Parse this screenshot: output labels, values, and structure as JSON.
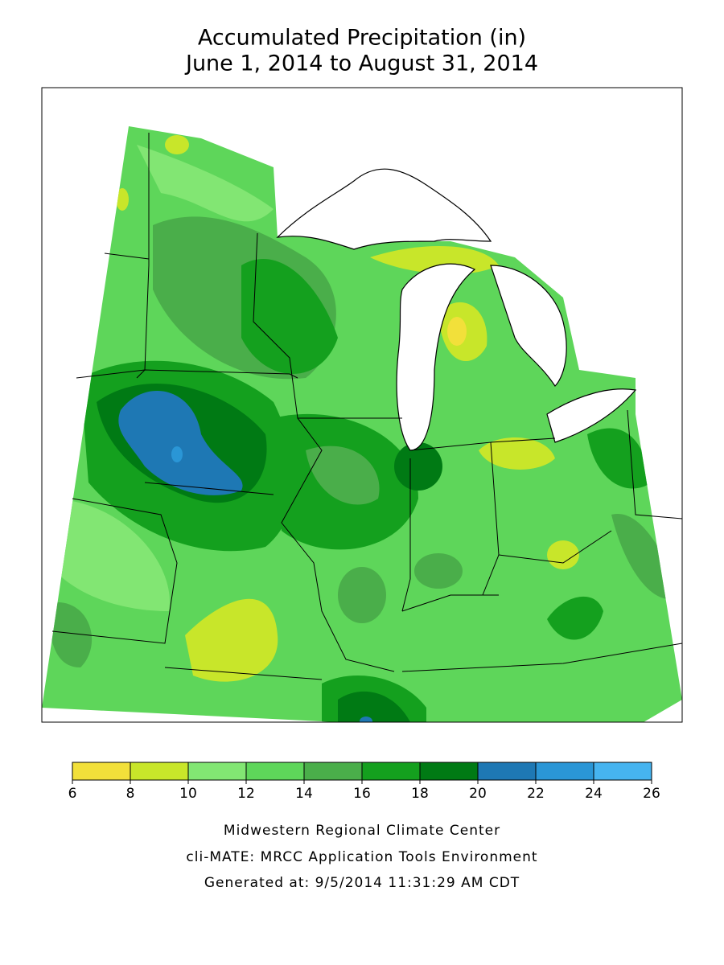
{
  "title": [
    "Accumulated Precipitation (in)",
    "June 1, 2014 to August 31, 2014"
  ],
  "legend": {
    "ticks": [
      6,
      8,
      10,
      12,
      14,
      16,
      18,
      20,
      22,
      24,
      26
    ],
    "colors": [
      "#f2e03a",
      "#c8e62a",
      "#82e673",
      "#5ed65a",
      "#4aae4a",
      "#14a01e",
      "#007a14",
      "#1e78b4",
      "#2a96d6",
      "#46b4f0"
    ]
  },
  "footer": [
    "Midwestern Regional Climate Center",
    "cli-MATE: MRCC Application Tools Environment",
    "Generated at: 9/5/2014 11:31:29 AM CDT"
  ]
}
